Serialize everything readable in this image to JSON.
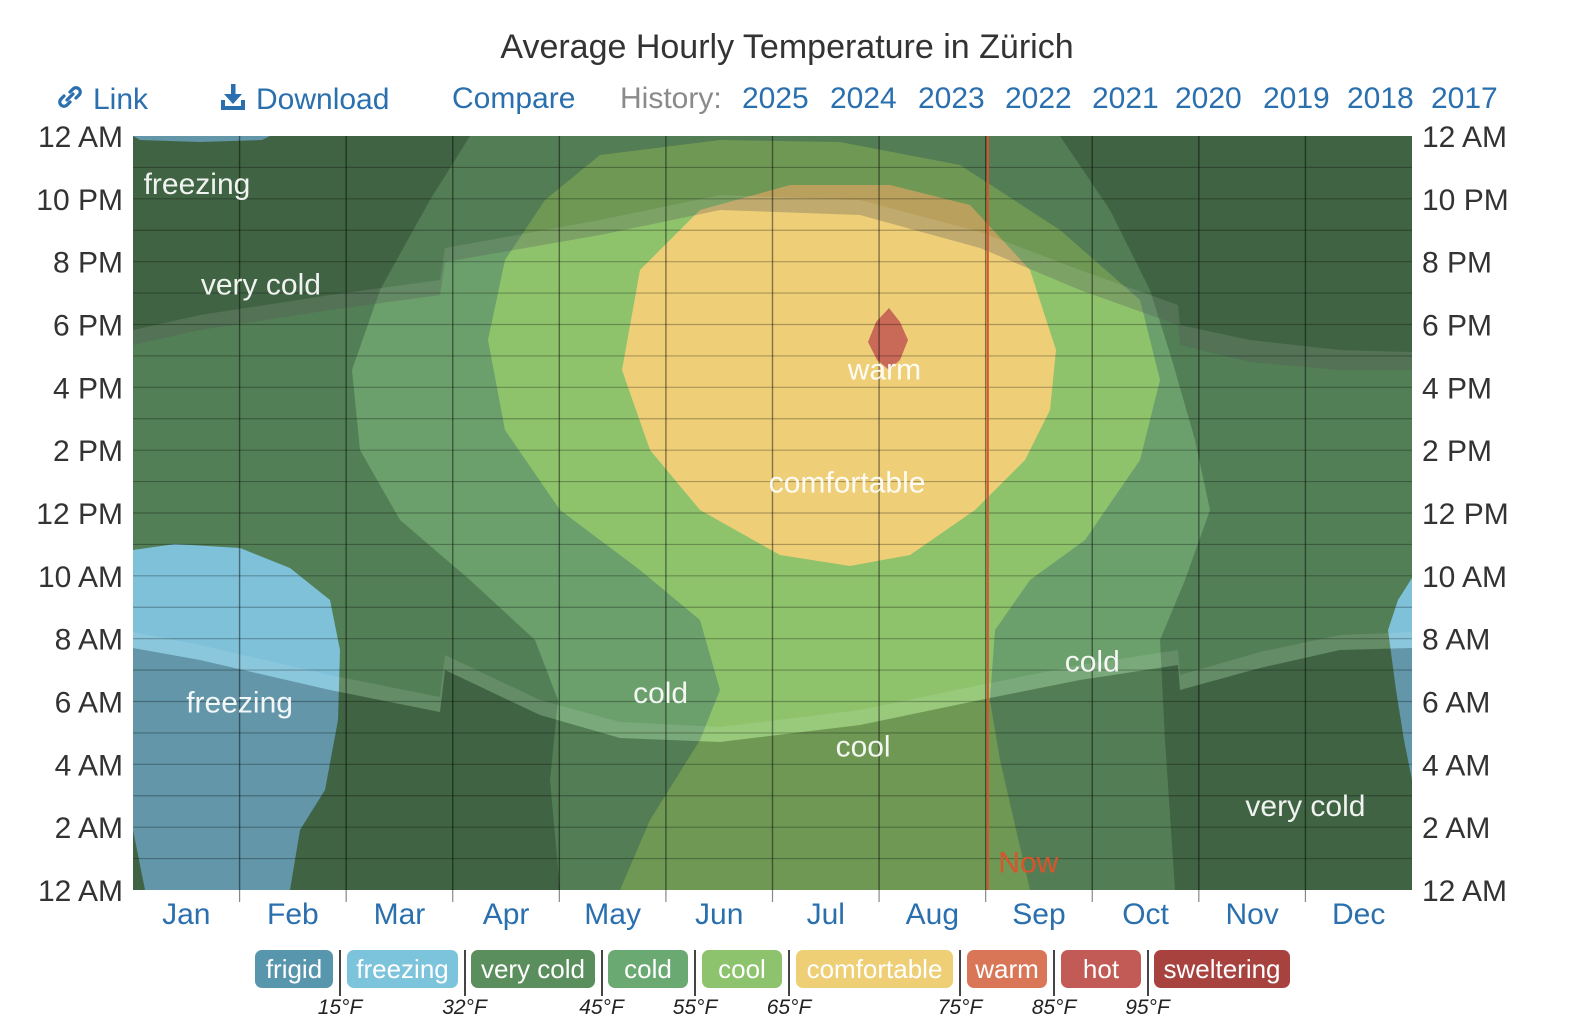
{
  "header": {
    "title": "Average Hourly Temperature in Zürich",
    "link_label": "Link",
    "download_label": "Download",
    "compare_label": "Compare",
    "history_label": "History:",
    "history_years": [
      "2025",
      "2024",
      "2023",
      "2022",
      "2021",
      "2020",
      "2019",
      "2018",
      "2017"
    ]
  },
  "chart_data": {
    "type": "heatmap",
    "title": "Average Hourly Temperature in Zürich",
    "x_categories": [
      "Jan",
      "Feb",
      "Mar",
      "Apr",
      "May",
      "Jun",
      "Jul",
      "Aug",
      "Sep",
      "Oct",
      "Nov",
      "Dec"
    ],
    "y_ticks": [
      "12 AM",
      "10 PM",
      "8 PM",
      "6 PM",
      "4 PM",
      "2 PM",
      "12 PM",
      "10 AM",
      "8 AM",
      "6 AM",
      "4 AM",
      "2 AM",
      "12 AM"
    ],
    "now_marker": {
      "label": "Now",
      "month_position": 8.02,
      "color": "#d9532c"
    },
    "band_labels": [
      {
        "text": "freezing",
        "month": 0.6,
        "hour": 22.5
      },
      {
        "text": "very cold",
        "month": 1.2,
        "hour": 19.3
      },
      {
        "text": "freezing",
        "month": 1.0,
        "hour": 6.0
      },
      {
        "text": "warm",
        "month": 7.05,
        "hour": 16.6
      },
      {
        "text": "comfortable",
        "month": 6.7,
        "hour": 13.0
      },
      {
        "text": "cold",
        "month": 4.95,
        "hour": 6.3
      },
      {
        "text": "cool",
        "month": 6.85,
        "hour": 4.6
      },
      {
        "text": "cold",
        "month": 9.0,
        "hour": 7.3
      },
      {
        "text": "very cold",
        "month": 11.0,
        "hour": 2.7
      },
      {
        "text": "Now",
        "month": 8.4,
        "hour": 0.9,
        "color": "#d9532c"
      }
    ],
    "legend": {
      "categories": [
        {
          "name": "frigid",
          "color": "#5896ad"
        },
        {
          "name": "freezing",
          "color": "#7cc3dc"
        },
        {
          "name": "very cold",
          "color": "#5b8e5d"
        },
        {
          "name": "cold",
          "color": "#6aa971"
        },
        {
          "name": "cool",
          "color": "#8cc36c"
        },
        {
          "name": "comfortable",
          "color": "#eecf75"
        },
        {
          "name": "warm",
          "color": "#d97658"
        },
        {
          "name": "hot",
          "color": "#c25a55"
        },
        {
          "name": "sweltering",
          "color": "#a8423f"
        }
      ],
      "thresholds": [
        "15°F",
        "32°F",
        "45°F",
        "55°F",
        "65°F",
        "75°F",
        "85°F",
        "95°F"
      ]
    },
    "colors": {
      "very_cold": "#537f56",
      "cold": "#6ba06c",
      "cool": "#8ec36c",
      "comfortable": "#eecf78",
      "warm": "#c96a58",
      "freezing": "#7ec1d8",
      "night_shade": "rgba(0,0,0,0.25)"
    }
  }
}
